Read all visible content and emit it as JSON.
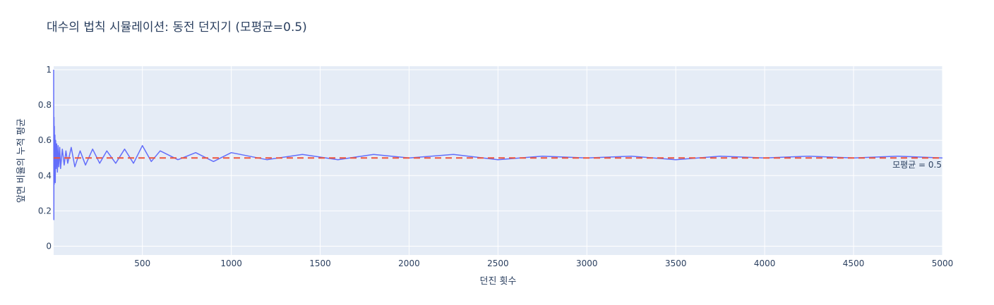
{
  "chart_data": {
    "type": "line",
    "title": "대수의 법칙 시뮬레이션: 동전 던지기 (모평균=0.5)",
    "xlabel": "던진 횟수",
    "ylabel": "앞면 비율의 누적 평균",
    "xlim": [
      1,
      5000
    ],
    "ylim": [
      -0.05,
      1.02
    ],
    "x_ticks": [
      500,
      1000,
      1500,
      2000,
      2500,
      3000,
      3500,
      4000,
      4500,
      5000
    ],
    "x_tick_labels": [
      "500",
      "1000",
      "1500",
      "2000",
      "2500",
      "3000",
      "3500",
      "4000",
      "4500",
      "5000"
    ],
    "y_ticks": [
      0,
      0.2,
      0.4,
      0.6,
      0.8,
      1
    ],
    "y_tick_labels": [
      "0",
      "0.2",
      "0.4",
      "0.6",
      "0.8",
      "1"
    ],
    "grid": true,
    "legend": "none",
    "series": [
      {
        "style": "solid",
        "color": "#636efa",
        "x": [
          1,
          2,
          3,
          4,
          5,
          6,
          8,
          10,
          12,
          15,
          18,
          22,
          26,
          30,
          35,
          40,
          50,
          60,
          70,
          80,
          100,
          120,
          150,
          180,
          220,
          260,
          300,
          350,
          400,
          450,
          500,
          550,
          600,
          700,
          800,
          900,
          1000,
          1200,
          1400,
          1600,
          1800,
          2000,
          2250,
          2500,
          2750,
          3000,
          3250,
          3500,
          3750,
          4000,
          4250,
          4500,
          4750,
          5000
        ],
        "y": [
          1.0,
          0.15,
          0.73,
          0.35,
          0.68,
          0.4,
          0.63,
          0.36,
          0.6,
          0.44,
          0.58,
          0.42,
          0.57,
          0.45,
          0.56,
          0.44,
          0.55,
          0.46,
          0.54,
          0.47,
          0.56,
          0.45,
          0.54,
          0.46,
          0.55,
          0.47,
          0.54,
          0.47,
          0.55,
          0.47,
          0.57,
          0.48,
          0.54,
          0.49,
          0.53,
          0.48,
          0.53,
          0.49,
          0.52,
          0.49,
          0.52,
          0.5,
          0.52,
          0.49,
          0.51,
          0.5,
          0.51,
          0.49,
          0.51,
          0.5,
          0.51,
          0.5,
          0.51,
          0.5
        ]
      },
      {
        "style": "dashed",
        "color": "#ef553b",
        "x": [
          1,
          5000
        ],
        "y": [
          0.5,
          0.5
        ]
      }
    ],
    "annotations": [
      {
        "text": "모평균 = 0.5",
        "x": 5000,
        "y": 0.5,
        "position": "bottom-right"
      }
    ]
  }
}
